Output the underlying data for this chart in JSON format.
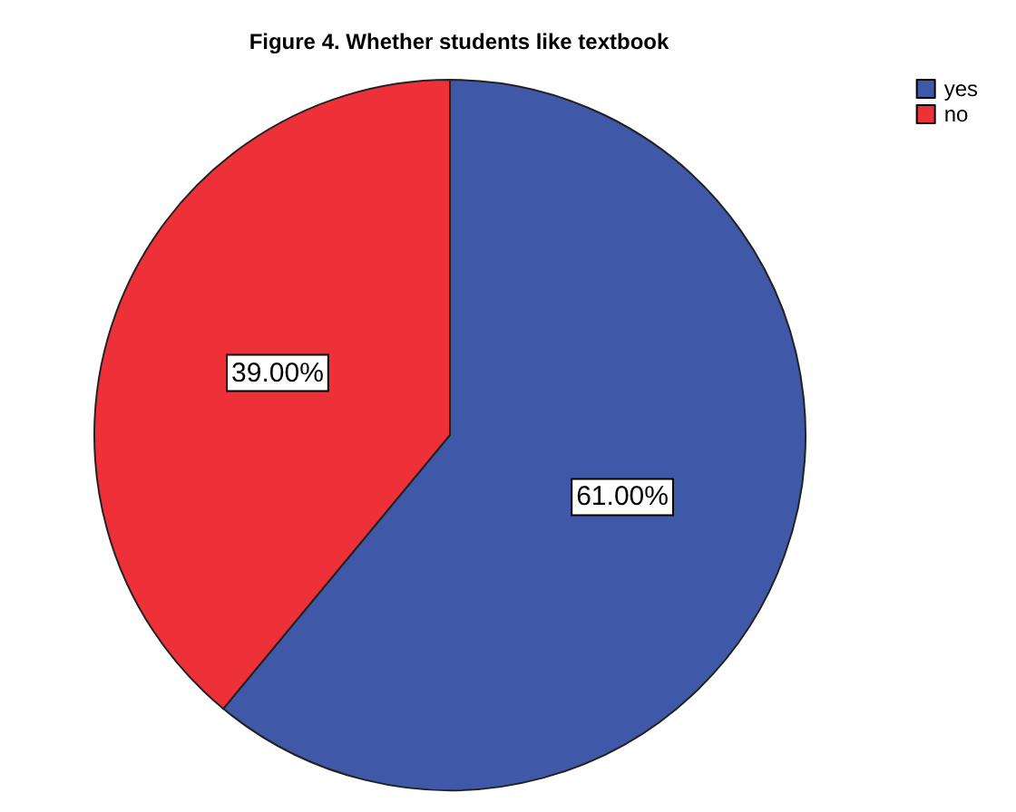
{
  "chart_data": {
    "type": "pie",
    "title": "Figure 4. Whether students like textbook",
    "categories": [
      "yes",
      "no"
    ],
    "values": [
      61,
      39
    ],
    "colors": [
      "#3f58a8",
      "#ee3039"
    ],
    "value_labels": [
      "61.00%",
      "39.00%"
    ],
    "legend": "top right"
  }
}
